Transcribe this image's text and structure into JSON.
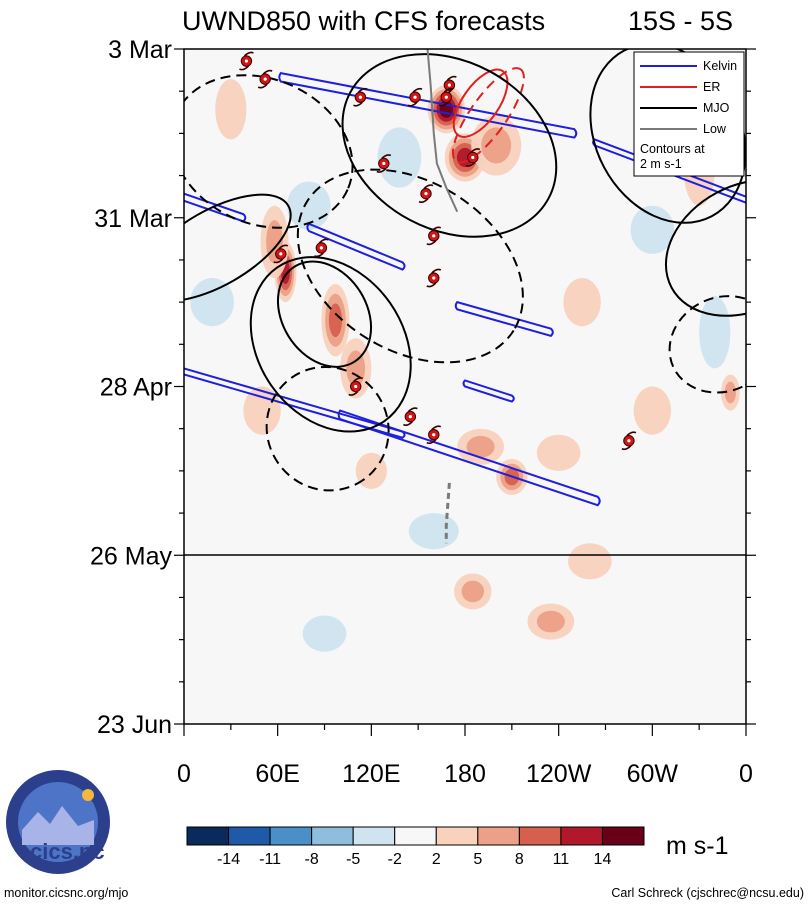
{
  "chart_data": {
    "type": "heatmap",
    "title": "UWND850 with CFS forecasts",
    "region": "15S - 5S",
    "y_axis": {
      "ticks": [
        "3 Mar",
        "31 Mar",
        "28 Apr",
        "26 May",
        "23 Jun"
      ],
      "day_range": [
        0,
        112
      ],
      "forecast_start": "26 May"
    },
    "x_axis": {
      "ticks": [
        "0",
        "60E",
        "120E",
        "180",
        "120W",
        "60W",
        "0"
      ],
      "lon_range": [
        0,
        360
      ]
    },
    "legend": {
      "placement": "top-right",
      "entries": [
        {
          "name": "Kelvin",
          "color": "#1f1fe0"
        },
        {
          "name": "ER",
          "color": "#e01f1f"
        },
        {
          "name": "MJO",
          "color": "#000000"
        },
        {
          "name": "Low",
          "color": "#7a7a7a"
        }
      ],
      "note_line1": "Contours at",
      "note_line2": "2 m s-1"
    },
    "colorbar": {
      "labels": [
        "-14",
        "-11",
        "-8",
        "-5",
        "-2",
        "2",
        "5",
        "8",
        "11",
        "14"
      ],
      "colors": [
        "#0b2a5c",
        "#1f5aa8",
        "#4b8fc8",
        "#8fbddd",
        "#cfe4ef",
        "#f7f7f7",
        "#f8d2bd",
        "#eba087",
        "#d6604d",
        "#b2182b",
        "#6a0018"
      ],
      "unit": "m s-1"
    },
    "anomaly_blobs": [
      {
        "lon": 168,
        "day": 10,
        "value": 14,
        "rlon": 12,
        "rday": 4
      },
      {
        "lon": 180,
        "day": 18,
        "value": 12,
        "rlon": 13,
        "rday": 4
      },
      {
        "lon": 200,
        "day": 16,
        "value": 7,
        "rlon": 16,
        "rday": 5
      },
      {
        "lon": 65,
        "day": 37,
        "value": 13,
        "rlon": 7,
        "rday": 5
      },
      {
        "lon": 97,
        "day": 45,
        "value": 10,
        "rlon": 9,
        "rday": 6
      },
      {
        "lon": 110,
        "day": 53,
        "value": 7,
        "rlon": 10,
        "rday": 5
      },
      {
        "lon": 138,
        "day": 18,
        "value": -4,
        "rlon": 14,
        "rday": 5
      },
      {
        "lon": 80,
        "day": 26,
        "value": -3,
        "rlon": 14,
        "rday": 4
      },
      {
        "lon": 58,
        "day": 32,
        "value": 5,
        "rlon": 9,
        "rday": 6
      },
      {
        "lon": 210,
        "day": 71,
        "value": 10,
        "rlon": 10,
        "rday": 3
      },
      {
        "lon": 190,
        "day": 66,
        "value": 7,
        "rlon": 15,
        "rday": 3
      },
      {
        "lon": 240,
        "day": 67,
        "value": 4,
        "rlon": 14,
        "rday": 3
      },
      {
        "lon": 185,
        "day": 90,
        "value": 6,
        "rlon": 12,
        "rday": 3
      },
      {
        "lon": 235,
        "day": 95,
        "value": 5,
        "rlon": 15,
        "rday": 3
      },
      {
        "lon": 340,
        "day": 47,
        "value": -4,
        "rlon": 10,
        "rday": 6
      },
      {
        "lon": 18,
        "day": 42,
        "value": -3,
        "rlon": 14,
        "rday": 4
      },
      {
        "lon": 330,
        "day": 20,
        "value": 4,
        "rlon": 10,
        "rday": 6
      },
      {
        "lon": 300,
        "day": 60,
        "value": 3,
        "rlon": 12,
        "rday": 4
      },
      {
        "lon": 120,
        "day": 70,
        "value": 4,
        "rlon": 10,
        "rday": 3
      },
      {
        "lon": 255,
        "day": 42,
        "value": 4,
        "rlon": 12,
        "rday": 4
      },
      {
        "lon": 350,
        "day": 57,
        "value": 5,
        "rlon": 6,
        "rday": 3
      },
      {
        "lon": 30,
        "day": 10,
        "value": 3,
        "rlon": 10,
        "rday": 5
      },
      {
        "lon": 300,
        "day": 30,
        "value": -3,
        "rlon": 14,
        "rday": 4
      },
      {
        "lon": 50,
        "day": 60,
        "value": 3,
        "rlon": 12,
        "rday": 4
      },
      {
        "lon": 160,
        "day": 80,
        "value": -3,
        "rlon": 16,
        "rday": 3
      },
      {
        "lon": 90,
        "day": 97,
        "value": -2,
        "rlon": 14,
        "rday": 3
      },
      {
        "lon": 260,
        "day": 85,
        "value": 3,
        "rlon": 14,
        "rday": 3
      }
    ],
    "kelvin_contours": [
      {
        "lon": [
          62,
          250
        ],
        "day": [
          4,
          14
        ],
        "width_day": 0.7
      },
      {
        "lon": [
          0,
          38
        ],
        "day": [
          24,
          28
        ],
        "width_day": 0.6
      },
      {
        "lon": [
          80,
          140
        ],
        "day": [
          29,
          36
        ],
        "width_day": 0.6
      },
      {
        "lon": [
          175,
          235
        ],
        "day": [
          42,
          47
        ],
        "width_day": 0.6
      },
      {
        "lon": [
          0,
          140
        ],
        "day": [
          53,
          64
        ],
        "width_day": 0.5
      },
      {
        "lon": [
          100,
          265
        ],
        "day": [
          60,
          75
        ],
        "width_day": 0.7
      },
      {
        "lon": [
          180,
          210
        ],
        "day": [
          55,
          58
        ],
        "width_day": 0.5
      },
      {
        "lon": [
          263,
          360
        ],
        "day": [
          15,
          25
        ],
        "width_day": 0.5
      }
    ],
    "er_contours": [
      {
        "lon": 190,
        "day": 9,
        "rlon": 25,
        "rday": 3,
        "angle": -55,
        "dashed": false
      },
      {
        "lon": 195,
        "day": 11,
        "rlon": 36,
        "rday": 3,
        "angle": -55,
        "dashed": true
      }
    ],
    "mjo_contours": [
      {
        "lon": 170,
        "day": 16,
        "rlon": 72,
        "rday": 14,
        "angle": 28,
        "dashed": false
      },
      {
        "lon": 310,
        "day": 14,
        "rlon": 60,
        "rday": 12,
        "angle": 62,
        "dashed": false
      },
      {
        "lon": 50,
        "day": 17,
        "rlon": 60,
        "rday": 12,
        "angle": 24,
        "dashed": true
      },
      {
        "lon": 145,
        "day": 36,
        "rlon": 78,
        "rday": 14,
        "angle": 32,
        "dashed": true
      },
      {
        "lon": 94,
        "day": 49,
        "rlon": 60,
        "rday": 12,
        "angle": 55,
        "dashed": false
      },
      {
        "lon": 90,
        "day": 44,
        "rlon": 36,
        "rday": 7,
        "angle": 58,
        "dashed": false
      },
      {
        "lon": 360,
        "day": 33,
        "rlon": 40,
        "rday": 14,
        "angle": 62,
        "dashed": false
      },
      {
        "lon": 20,
        "day": 33,
        "rlon": 24,
        "rday": 14,
        "angle": 60,
        "dashed": false
      },
      {
        "lon": 92,
        "day": 63,
        "rlon": 40,
        "rday": 10,
        "angle": 55,
        "dashed": true
      },
      {
        "lon": 345,
        "day": 49,
        "rlon": 30,
        "rday": 9,
        "angle": 65,
        "dashed": true
      }
    ],
    "low_contours": [
      {
        "points": [
          [
            156,
            0
          ],
          [
            158,
            6
          ],
          [
            160,
            14
          ],
          [
            162,
            19
          ],
          [
            168,
            23
          ],
          [
            175,
            27
          ]
        ]
      },
      {
        "points": [
          [
            170,
            72
          ],
          [
            168,
            79
          ],
          [
            168,
            82
          ]
        ],
        "dashed": true
      }
    ],
    "cyclones": [
      {
        "lon": 40,
        "day": 2
      },
      {
        "lon": 52,
        "day": 5
      },
      {
        "lon": 113,
        "day": 8
      },
      {
        "lon": 148,
        "day": 8
      },
      {
        "lon": 170,
        "day": 6
      },
      {
        "lon": 168,
        "day": 8
      },
      {
        "lon": 128,
        "day": 19
      },
      {
        "lon": 155,
        "day": 24
      },
      {
        "lon": 160,
        "day": 31
      },
      {
        "lon": 62,
        "day": 34
      },
      {
        "lon": 88,
        "day": 33
      },
      {
        "lon": 160,
        "day": 38
      },
      {
        "lon": 185,
        "day": 18
      },
      {
        "lon": 110,
        "day": 56
      },
      {
        "lon": 145,
        "day": 61
      },
      {
        "lon": 160,
        "day": 64
      },
      {
        "lon": 285,
        "day": 65
      }
    ]
  },
  "footer": {
    "left": "monitor.cicsnc.org/mjo",
    "right": "Carl Schreck (cjschrec@ncsu.edu)",
    "logo_text": "cics.nc"
  }
}
